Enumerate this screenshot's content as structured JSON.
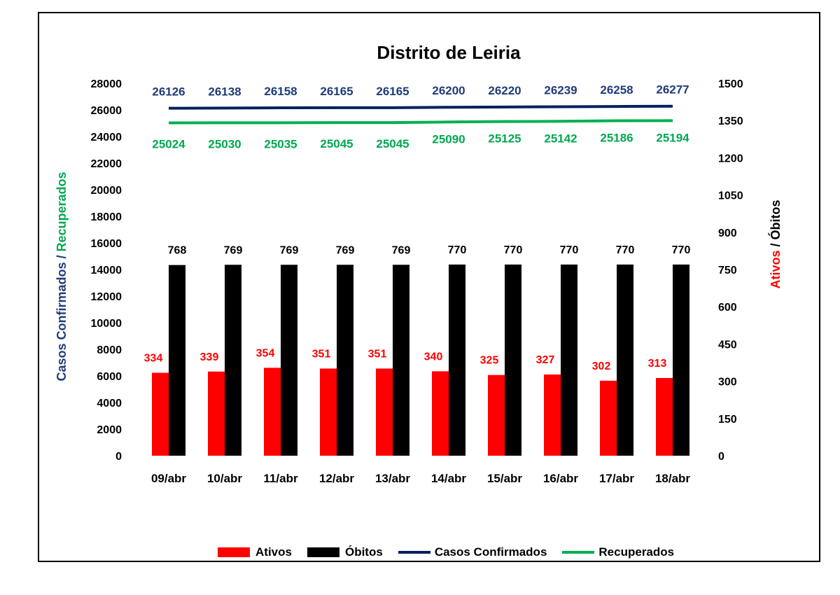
{
  "chart_data": {
    "type": "bar",
    "title": "Distrito de Leiria",
    "categories": [
      "09/abr",
      "10/abr",
      "11/abr",
      "12/abr",
      "13/abr",
      "14/abr",
      "15/abr",
      "16/abr",
      "17/abr",
      "18/abr"
    ],
    "y_left": {
      "label_part1": "Casos Confirmados",
      "label_sep": " / ",
      "label_part2": "Recuperados",
      "range": [
        0,
        28000
      ],
      "ticks": [
        "0",
        "2000",
        "4000",
        "6000",
        "8000",
        "10000",
        "12000",
        "14000",
        "16000",
        "18000",
        "20000",
        "22000",
        "24000",
        "26000",
        "28000"
      ]
    },
    "y_right": {
      "label_part1": "Ativos",
      "label_sep": " / ",
      "label_part2": "Óbitos",
      "range": [
        0,
        1500
      ],
      "ticks": [
        "0",
        "150",
        "300",
        "450",
        "600",
        "750",
        "900",
        "1050",
        "1200",
        "1350",
        "1500"
      ]
    },
    "series": [
      {
        "name": "Ativos",
        "type": "bar",
        "axis": "right",
        "color": "#ff0000",
        "label_color": "#ff0000",
        "values": [
          334,
          339,
          354,
          351,
          351,
          340,
          325,
          327,
          302,
          313
        ]
      },
      {
        "name": "Óbitos",
        "type": "bar",
        "axis": "right",
        "color": "#000000",
        "label_color": "#000000",
        "values": [
          768,
          769,
          769,
          769,
          769,
          770,
          770,
          770,
          770,
          770
        ]
      },
      {
        "name": "Casos Confirmados",
        "type": "line",
        "axis": "left",
        "color": "#002060",
        "label_color": "#1f3c78",
        "values": [
          26126,
          26138,
          26158,
          26165,
          26165,
          26200,
          26220,
          26239,
          26258,
          26277
        ]
      },
      {
        "name": "Recuperados",
        "type": "line",
        "axis": "left",
        "color": "#00b050",
        "label_color": "#00a84f",
        "values": [
          25024,
          25030,
          25035,
          25045,
          25045,
          25090,
          25125,
          25142,
          25186,
          25194
        ]
      }
    ],
    "grid": false,
    "legend_position": "bottom"
  }
}
